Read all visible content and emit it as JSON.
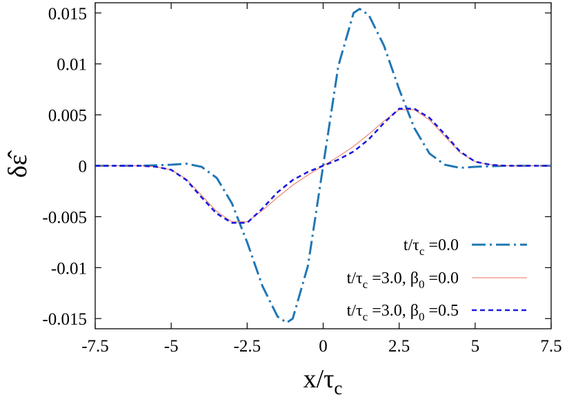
{
  "chart_data": {
    "type": "line",
    "title": "",
    "xlabel": {
      "main": "x/τ",
      "sub": "c"
    },
    "ylabel": "δε̂",
    "xlim": [
      -7.5,
      7.5
    ],
    "ylim": [
      -0.016,
      0.016
    ],
    "x_ticks": [
      -7.5,
      -5,
      -2.5,
      0,
      2.5,
      5,
      7.5
    ],
    "x_tick_labels": [
      "-7.5",
      "-5",
      "-2.5",
      "0",
      "2.5",
      "5",
      "7.5"
    ],
    "y_ticks": [
      -0.015,
      -0.01,
      -0.005,
      0,
      0.005,
      0.01,
      0.015
    ],
    "y_tick_labels": [
      "-0.015",
      "-0.01",
      "-0.005",
      "0",
      "0.005",
      "0.01",
      "0.015"
    ],
    "grid": false,
    "legend_position": "bottom-right",
    "series": [
      {
        "name": "t/τc =0.0",
        "legend_parts": [
          "t/τ",
          "c",
          " =0.0"
        ],
        "color": "#1f77b4",
        "style": "dash-dot",
        "x": [
          -7.5,
          -6.0,
          -5.0,
          -4.5,
          -4.0,
          -3.5,
          -3.0,
          -2.5,
          -2.0,
          -1.5,
          -1.2,
          -1.0,
          -0.5,
          0.0,
          0.5,
          1.0,
          1.2,
          1.5,
          2.0,
          2.5,
          3.0,
          3.5,
          4.0,
          4.5,
          5.0,
          6.0,
          7.5
        ],
        "y": [
          0.0,
          0.0,
          0.0001,
          0.0002,
          -0.0001,
          -0.0012,
          -0.0037,
          -0.0075,
          -0.0118,
          -0.0148,
          -0.0154,
          -0.015,
          -0.0098,
          0.0,
          0.0098,
          0.015,
          0.0154,
          0.0148,
          0.0118,
          0.0075,
          0.0037,
          0.0012,
          0.0001,
          -0.0002,
          -0.0001,
          0.0,
          0.0
        ]
      },
      {
        "name": "t/τc =3.0, β0 =0.0",
        "legend_parts": [
          "t/τ",
          "c",
          " =3.0, β",
          "0",
          " =0.0"
        ],
        "color": "#e8735a",
        "style": "solid",
        "x": [
          -7.5,
          -6.0,
          -5.5,
          -5.0,
          -4.5,
          -4.0,
          -3.5,
          -3.0,
          -2.5,
          -2.0,
          -1.5,
          -1.0,
          -0.5,
          0.0,
          0.5,
          1.0,
          1.5,
          2.0,
          2.5,
          3.0,
          3.5,
          4.0,
          4.5,
          5.0,
          5.5,
          6.0,
          7.5
        ],
        "y": [
          0.0,
          0.0,
          -0.0001,
          -0.0004,
          -0.0013,
          -0.0029,
          -0.0045,
          -0.0055,
          -0.0055,
          -0.0044,
          -0.0031,
          -0.0019,
          -0.0009,
          0.0,
          0.0009,
          0.0019,
          0.0031,
          0.0044,
          0.0055,
          0.0055,
          0.0045,
          0.0029,
          0.0013,
          0.0004,
          0.0001,
          0.0,
          0.0
        ]
      },
      {
        "name": "t/τc =3.0, β0 =0.5",
        "legend_parts": [
          "t/τ",
          "c",
          " =3.0, β",
          "0",
          " =0.5"
        ],
        "color": "#1a1adf",
        "style": "dashed",
        "x": [
          -7.5,
          -6.0,
          -5.5,
          -5.0,
          -4.5,
          -4.0,
          -3.5,
          -3.0,
          -2.5,
          -2.0,
          -1.5,
          -1.0,
          -0.5,
          0.0,
          0.5,
          1.0,
          1.5,
          2.0,
          2.5,
          3.0,
          3.5,
          4.0,
          4.5,
          5.0,
          5.5,
          6.0,
          7.5
        ],
        "y": [
          0.0,
          0.0,
          -0.0001,
          -0.0004,
          -0.0014,
          -0.0031,
          -0.0047,
          -0.0056,
          -0.0056,
          -0.0042,
          -0.0026,
          -0.0014,
          -0.0006,
          0.0,
          0.0006,
          0.0014,
          0.0026,
          0.0042,
          0.0056,
          0.0056,
          0.0047,
          0.0031,
          0.0014,
          0.0004,
          0.0001,
          0.0,
          0.0
        ]
      }
    ]
  }
}
